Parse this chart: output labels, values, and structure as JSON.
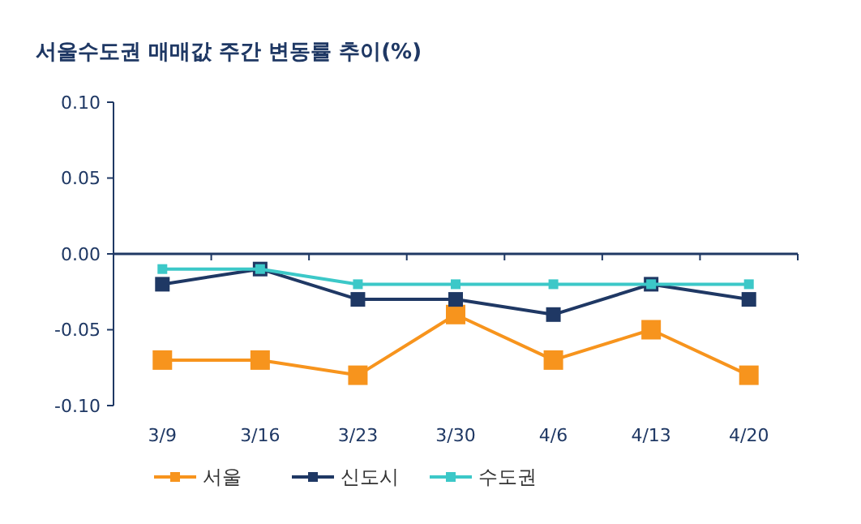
{
  "chart_data": {
    "type": "line",
    "title": "서울수도권 매매값 주간 변동률 추이(%)",
    "categories": [
      "3/9",
      "3/16",
      "3/23",
      "3/30",
      "4/6",
      "4/13",
      "4/20"
    ],
    "series": [
      {
        "name": "서울",
        "color": "#f7941d",
        "values": [
          -0.07,
          -0.07,
          -0.08,
          -0.04,
          -0.07,
          -0.05,
          -0.08
        ]
      },
      {
        "name": "신도시",
        "color": "#1f3864",
        "values": [
          -0.02,
          -0.01,
          -0.03,
          -0.03,
          -0.04,
          -0.02,
          -0.03
        ]
      },
      {
        "name": "수도권",
        "color": "#3cc8c8",
        "values": [
          -0.01,
          -0.01,
          -0.02,
          -0.02,
          -0.02,
          -0.02,
          -0.02
        ]
      }
    ],
    "ylim": [
      -0.1,
      0.1
    ],
    "yticks": [
      {
        "value": -0.1,
        "label": "-0.10"
      },
      {
        "value": -0.05,
        "label": "-0.05"
      },
      {
        "value": 0,
        "label": "0.00"
      },
      {
        "value": 0.05,
        "label": "0.05"
      },
      {
        "value": 0.1,
        "label": "0.10"
      }
    ],
    "ref_lines": [
      {
        "axis": "y",
        "value": 0,
        "color": "#1f3864"
      }
    ],
    "grid": false,
    "legend": "bottom",
    "marker": "square",
    "line_style": "solid"
  }
}
